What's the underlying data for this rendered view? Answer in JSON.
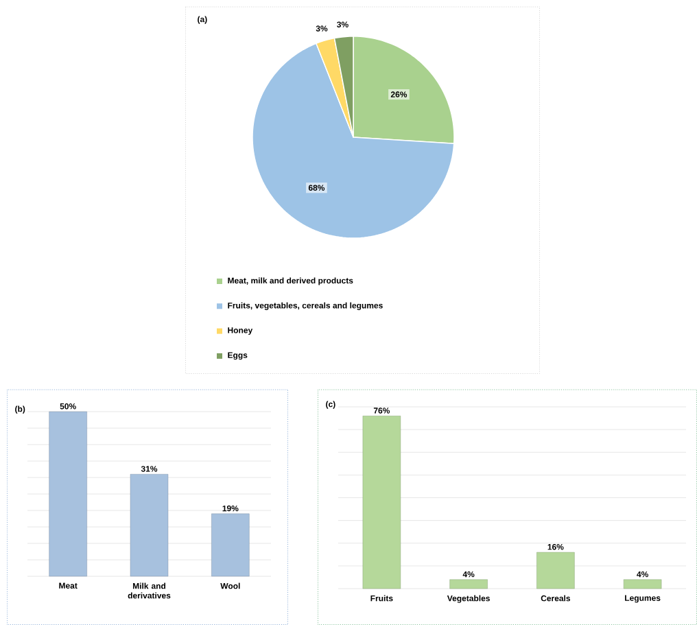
{
  "chart_data": [
    {
      "type": "pie",
      "title": "(a)",
      "categories": [
        "Meat, milk and derived products",
        "Fruits, vegetables, cereals and legumes",
        "Honey",
        "Eggs"
      ],
      "values": [
        26,
        68,
        3,
        3
      ],
      "value_labels": [
        "26%",
        "68%",
        "3%",
        "3%"
      ],
      "colors": [
        "#a9d18e",
        "#9dc3e6",
        "#ffd966",
        "#7f9f62"
      ],
      "legend": "bottom"
    },
    {
      "type": "bar",
      "title": "(b)",
      "categories": [
        "Meat",
        "Milk and derivatives",
        "Wool"
      ],
      "values": [
        50,
        31,
        19
      ],
      "value_labels": [
        "50%",
        "31%",
        "19%"
      ],
      "color": "#a7c1de",
      "ylim": [
        0,
        50
      ],
      "yticks": [
        {
          "value": 0,
          "label": null
        },
        {
          "value": 5,
          "label": null
        },
        {
          "value": 10,
          "label": null
        },
        {
          "value": 15,
          "label": null
        },
        {
          "value": 20,
          "label": null
        },
        {
          "value": 25,
          "label": null
        },
        {
          "value": 30,
          "label": null
        },
        {
          "value": 35,
          "label": null
        },
        {
          "value": 40,
          "label": null
        },
        {
          "value": 45,
          "label": null
        },
        {
          "value": 50,
          "label": null
        }
      ],
      "grid": "y",
      "tick_labels": "x"
    },
    {
      "type": "bar",
      "title": "(c)",
      "categories": [
        "Fruits",
        "Vegetables",
        "Cereals",
        "Legumes"
      ],
      "values": [
        76,
        4,
        16,
        4
      ],
      "value_labels": [
        "76%",
        "4%",
        "16%",
        "4%"
      ],
      "color": "#b5d89a",
      "ylim": [
        0,
        80
      ],
      "yticks": [
        {
          "value": 0,
          "label": null
        },
        {
          "value": 10,
          "label": null
        },
        {
          "value": 20,
          "label": null
        },
        {
          "value": 30,
          "label": null
        },
        {
          "value": 40,
          "label": null
        },
        {
          "value": 50,
          "label": null
        },
        {
          "value": 60,
          "label": null
        },
        {
          "value": 70,
          "label": null
        },
        {
          "value": 80,
          "label": null
        }
      ],
      "grid": "y",
      "tick_labels": "x"
    }
  ]
}
